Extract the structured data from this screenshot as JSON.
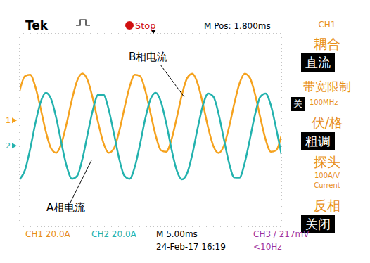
{
  "chart_data": {
    "type": "line",
    "x": [
      0,
      1,
      2,
      3,
      4,
      5,
      6,
      7,
      8,
      9,
      10,
      11,
      12,
      13,
      14,
      15,
      16,
      17,
      18,
      19,
      20,
      21,
      22,
      23,
      24,
      25,
      26,
      27,
      28,
      29,
      30,
      31,
      32,
      33,
      34,
      35,
      36,
      37,
      38,
      39,
      40,
      41,
      42,
      43,
      44,
      45,
      46,
      47,
      48,
      49,
      50
    ],
    "series": [
      {
        "name": "B相电流",
        "color": "#f5a21e",
        "values": [
          22.7,
          34.8,
          36.0,
          25.9,
          8.0,
          -11.3,
          -25.2,
          -28.8,
          -20.7,
          -3.9,
          15.7,
          31.2,
          37.0,
          31.2,
          15.7,
          -3.9,
          -20.7,
          -28.8,
          -25.2,
          -11.3,
          8.0,
          25.9,
          36.0,
          34.8,
          22.7,
          4.0,
          -14.7,
          -26.8,
          -28.0,
          -17.9,
          0.0,
          19.3,
          33.2,
          36.8,
          28.7,
          11.9,
          -7.7,
          -23.2,
          -29.0,
          -23.2,
          -7.7,
          11.9,
          28.7,
          36.8,
          33.2,
          19.3,
          0.0,
          -17.9,
          -28.0,
          -26.8,
          -14.7
        ]
      },
      {
        "name": "A相电流",
        "color": "#23b2ae",
        "values": [
          -50.9,
          -43.3,
          -25.7,
          -4.3,
          13.3,
          20.9,
          15.8,
          -0.2,
          -21.4,
          -40.4,
          -50.4,
          -47.9,
          -33.7,
          -12.9,
          7.1,
          19.4,
          19.4,
          7.2,
          -12.8,
          -33.6,
          -47.8,
          -50.4,
          -40.5,
          -21.6,
          -0.3,
          15.7,
          20.9,
          13.3,
          -4.3,
          -25.7,
          -43.3,
          -50.9,
          -45.8,
          -29.8,
          -8.6,
          10.4,
          20.4,
          17.8,
          3.6,
          -17.2,
          -37.2,
          -49.3,
          -49.4,
          -37.2,
          -17.3,
          3.5,
          17.8,
          20.4,
          10.5,
          -8.5,
          -29.8
        ]
      }
    ],
    "xlim": [
      0,
      50
    ],
    "xticks": [
      0,
      5,
      10,
      15,
      20,
      25,
      30,
      35,
      40,
      45,
      50
    ],
    "ylim": [
      -90,
      70
    ],
    "yticks": [
      -90,
      -70,
      -50,
      -30,
      -10,
      10,
      30,
      50,
      70
    ],
    "grid": true,
    "tick_labels": false,
    "channel_markers": [
      {
        "label": "1",
        "value": -2,
        "color": "#f5a21e"
      },
      {
        "label": "2",
        "value": -23,
        "color": "#23b2ae"
      }
    ]
  },
  "screen": {
    "header": [
      "Tek",
      "Stop",
      "M Pos: 1.800ms"
    ],
    "menu": [
      {
        "title": "CH1"
      },
      {
        "title": "耦合",
        "value": "直流"
      },
      {
        "title": "带宽限制",
        "value": "关",
        "note": [
          "100MHz"
        ]
      },
      {
        "title": "伏/格",
        "value": "粗调"
      },
      {
        "title": "探头",
        "note": [
          "100A/V",
          "Current"
        ]
      },
      {
        "title": "反相",
        "value": "关闭"
      }
    ],
    "footer": [
      {
        "text": "CH1 20.0A",
        "color": "#e8901c"
      },
      {
        "text": "CH2 20.0A",
        "color": "#23b2ae"
      },
      {
        "text": "M 5.00ms",
        "color": "#000000"
      },
      {
        "text": "CH3 ∕ 217mV",
        "color": "#a0309c"
      },
      {
        "text": "24-Feb-17 16:19",
        "color": "#000000"
      },
      {
        "text": "<10Hz",
        "color": "#a0309c"
      }
    ]
  }
}
